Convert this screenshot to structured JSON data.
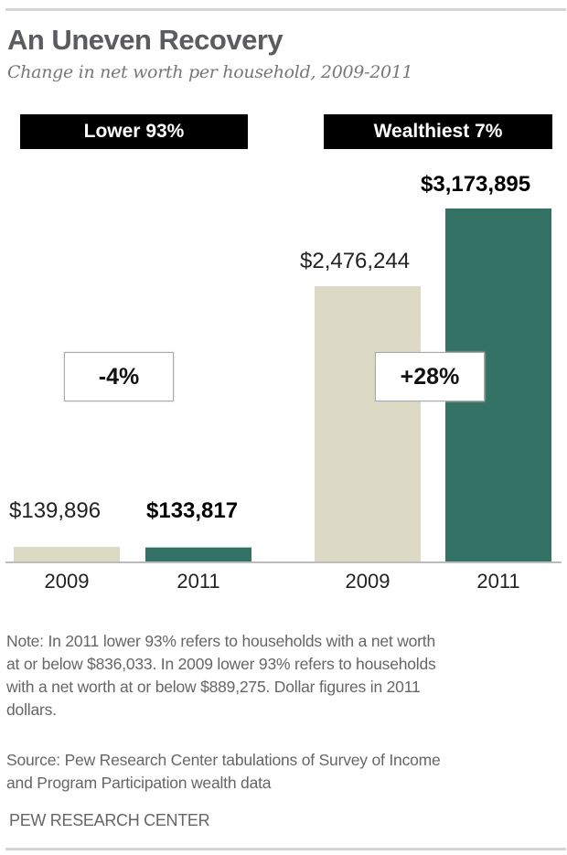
{
  "chart_data": {
    "type": "bar",
    "title": "An Uneven Recovery",
    "subtitle": "Change in net worth per household, 2009-2011",
    "groups": [
      {
        "name": "Lower 93%",
        "categories": [
          "2009",
          "2011"
        ],
        "values": [
          139896,
          133817
        ],
        "labels": [
          "$139,896",
          "$133,817"
        ],
        "change": "-4%"
      },
      {
        "name": "Wealthiest 7%",
        "categories": [
          "2009",
          "2011"
        ],
        "values": [
          2476244,
          3173895
        ],
        "labels": [
          "$2,476,244",
          "$3,173,895"
        ],
        "change": "+28%"
      }
    ],
    "series_colors": {
      "2009": "#dcdac5",
      "2011": "#337265"
    },
    "ylim": [
      0,
      3173895
    ],
    "grid": false,
    "xlabel": "",
    "ylabel": ""
  },
  "notes": {
    "note_lines": [
      "Note: In 2011 lower 93% refers to households with a net worth",
      "at or below $836,033. In 2009 lower 93% refers to households",
      "with a net worth at or below $889,275. Dollar figures in 2011",
      "dollars."
    ],
    "source_lines": [
      "Source: Pew Research Center tabulations of Survey of Income",
      "and Program Participation wealth data"
    ],
    "brand": "PEW RESEARCH CENTER"
  }
}
